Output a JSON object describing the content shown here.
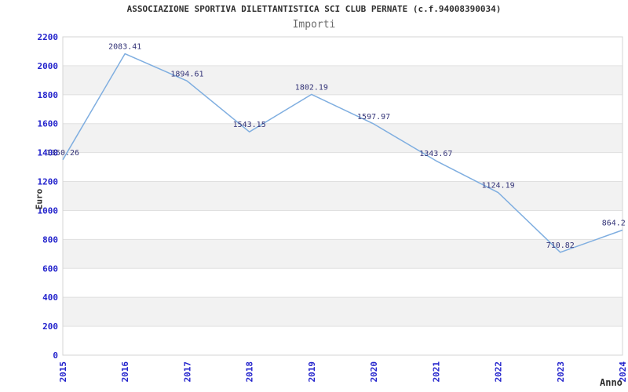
{
  "chart_data": {
    "type": "line",
    "title": "ASSOCIAZIONE SPORTIVA DILETTANTISTICA SCI CLUB PERNATE (c.f.94008390034)",
    "subtitle": "Importi",
    "xlabel": "Anno",
    "ylabel": "Euro",
    "categories": [
      "2015",
      "2016",
      "2017",
      "2018",
      "2019",
      "2020",
      "2021",
      "2022",
      "2023",
      "2024"
    ],
    "series": [
      {
        "name": "Importi",
        "values": [
          1350.26,
          2083.41,
          1894.61,
          1543.15,
          1802.19,
          1597.97,
          1343.67,
          1124.19,
          710.82,
          864.2
        ],
        "point_labels": [
          "1350.26",
          "2083.41",
          "1894.61",
          "1543.15",
          "1802.19",
          "1597.97",
          "1343.67",
          "1124.19",
          "710.82",
          "864.2"
        ]
      }
    ],
    "ylim": [
      0,
      2200
    ],
    "ytick_step": 200,
    "ytick_labels": [
      "0",
      "200",
      "400",
      "600",
      "800",
      "1000",
      "1200",
      "1400",
      "1600",
      "1800",
      "2000",
      "2200"
    ],
    "grid": "horizontal-alternating-bands",
    "legend": "none",
    "x_tick_rotation": -90,
    "colors": {
      "line": "#7FAEE0",
      "tick_labels": "#2323CC",
      "point_labels": "#333377",
      "title": "#2E2E2E",
      "subtitle": "#6A6A6A",
      "axis_titles": "#2E2E2E",
      "band": "#F2F2F2",
      "gridline": "#E0E0E0",
      "border": "#D4D4D4",
      "background": "#FFFFFF"
    }
  }
}
